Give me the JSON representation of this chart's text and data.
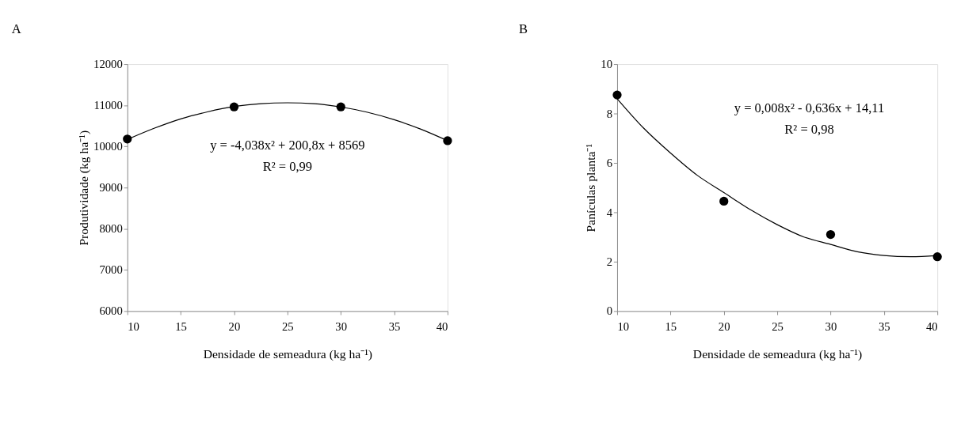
{
  "chart_data": [
    {
      "type": "scatter",
      "title": "A",
      "xlabel": "Densidade de semeadura (kg ha⁻¹)",
      "ylabel": "Produtividade (kg ha⁻¹)",
      "xlim": [
        10,
        40
      ],
      "xticks": [
        10,
        15,
        20,
        25,
        30,
        35,
        40
      ],
      "ylim": [
        6000,
        12000
      ],
      "yticks": [
        6000,
        7000,
        8000,
        9000,
        10000,
        11000,
        12000
      ],
      "grid": false,
      "annotations": [
        "y = -4,038x² + 200,8x + 8569",
        "R² = 0,99"
      ],
      "series": [
        {
          "type": "line",
          "color": "#000000",
          "x": [
            10,
            12.5,
            15,
            17.5,
            20,
            22.5,
            25,
            27.5,
            30,
            32.5,
            35,
            37.5,
            40
          ],
          "values": [
            10170,
            10440,
            10670,
            10840,
            10970,
            11040,
            11060,
            11040,
            10960,
            10830,
            10650,
            10420,
            10140
          ]
        },
        {
          "color": "#000000",
          "marker": "circle",
          "x": [
            10,
            20,
            30,
            40
          ],
          "values": [
            10180,
            10960,
            10960,
            10140
          ]
        }
      ]
    },
    {
      "type": "scatter",
      "title": "B",
      "xlabel": "Densidade de semeadura (kg ha⁻¹)",
      "ylabel": "Panículas planta⁻¹",
      "xlim": [
        10,
        40
      ],
      "xticks": [
        10,
        15,
        20,
        25,
        30,
        35,
        40
      ],
      "ylim": [
        0,
        10
      ],
      "yticks": [
        0,
        2,
        4,
        6,
        8,
        10
      ],
      "grid": false,
      "annotations": [
        "y = 0,008x² - 0,636x + 14,11",
        "R² = 0,98"
      ],
      "series": [
        {
          "type": "line",
          "color": "#000000",
          "x": [
            10,
            12.5,
            15,
            17.5,
            20,
            22.5,
            25,
            27.5,
            30,
            32.5,
            35,
            37.5,
            40
          ],
          "values": [
            8.6,
            7.4,
            6.4,
            5.5,
            4.8,
            4.1,
            3.5,
            3.0,
            2.7,
            2.4,
            2.25,
            2.2,
            2.25
          ]
        },
        {
          "color": "#000000",
          "marker": "circle",
          "x": [
            10,
            20,
            30,
            40
          ],
          "values": [
            8.75,
            4.45,
            3.1,
            2.2
          ]
        }
      ]
    }
  ]
}
